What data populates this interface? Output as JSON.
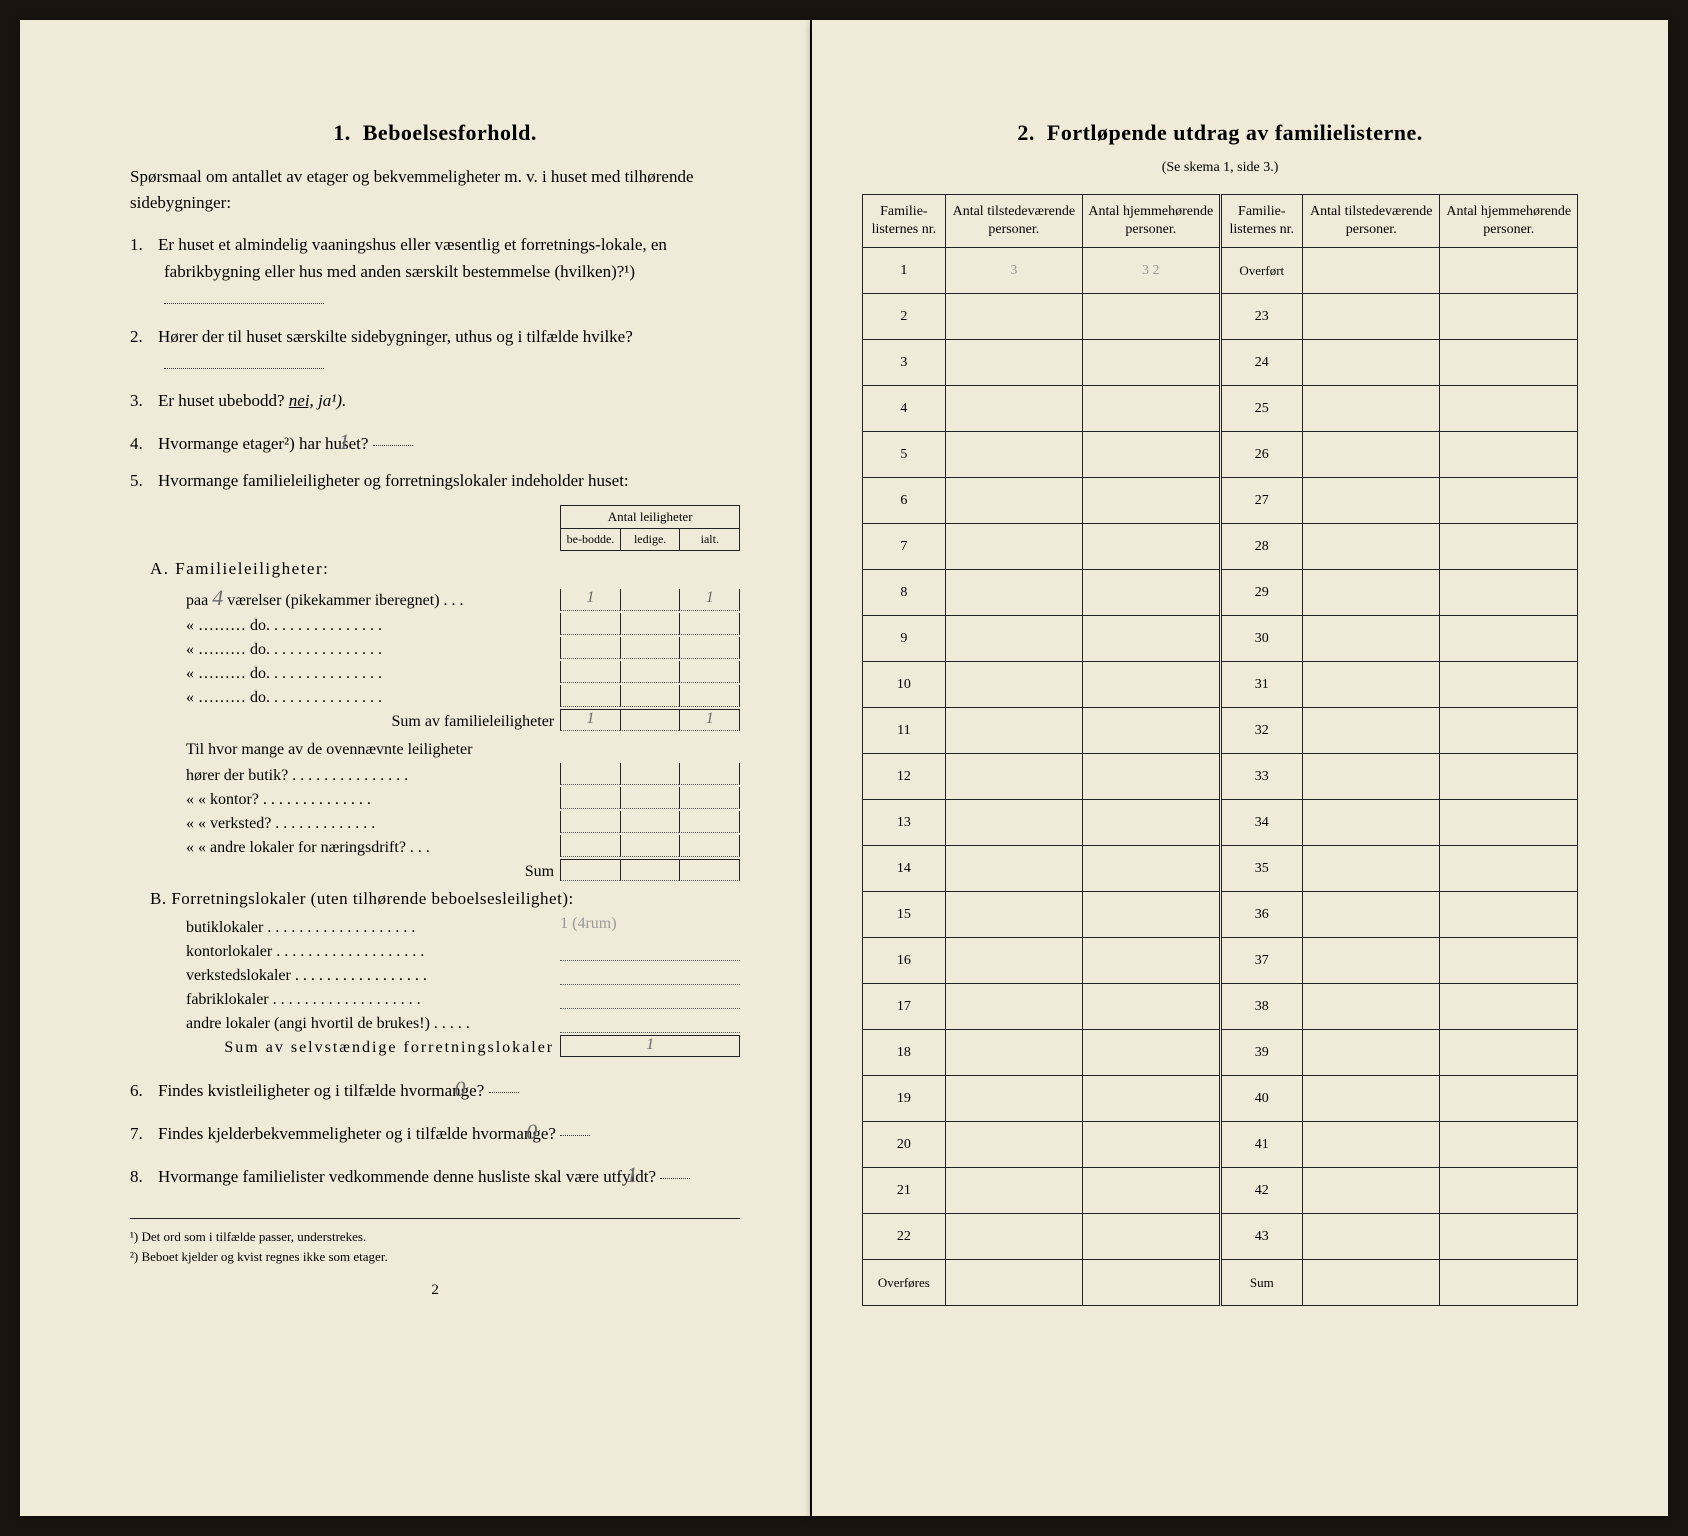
{
  "left": {
    "section_no": "1.",
    "section_title": "Beboelsesforhold.",
    "intro": "Spørsmaal om antallet av etager og bekvemmeligheter m. v. i huset med tilhørende sidebygninger:",
    "q1": "Er huset et almindelig vaaningshus eller væsentlig et forretnings-lokale, en fabrikbygning eller hus med anden særskilt bestemmelse (hvilken)?¹)",
    "q2": "Hører der til huset særskilte sidebygninger, uthus og i tilfælde hvilke?",
    "q3_pre": "Er huset ubebodd?",
    "q3_nei": "nei,",
    "q3_ja": "ja¹).",
    "q4_pre": "Hvormange etager²) har huset?",
    "q4_ans": "1",
    "q5": "Hvormange familieleiligheter og forretningslokaler indeholder huset:",
    "antall_hdr": "Antal leiligheter",
    "col_bebodde": "be-bodde.",
    "col_ledige": "ledige.",
    "col_ialt": "ialt.",
    "A_label": "A. Familieleiligheter:",
    "A_row1_pre": "paa",
    "A_row1_rooms": "4",
    "A_row1_rest": "værelser (pikekammer iberegnet) . . .",
    "A_row1_beb": "1",
    "A_row1_ialt": "1",
    "A_do": "«   ………   do.   . . . . . . . . . . . . . .",
    "A_sum": "Sum av familieleiligheter",
    "A_sum_beb": "1",
    "A_sum_ialt": "1",
    "A_sub_intro": "Til hvor mange av de ovennævnte leiligheter",
    "A_sub1": "hører der butik? . . . . . . . . . . . . . . .",
    "A_sub2": "«      «   kontor? . . . . . . . . . . . . . .",
    "A_sub3": "«      «   verksted? . . . . . . . . . . . . .",
    "A_sub4": "«      «   andre lokaler for næringsdrift? . . .",
    "A_sub_sum": "Sum",
    "B_label": "B. Forretningslokaler (uten tilhørende beboelsesleilighet):",
    "B_row1": "butiklokaler . . . . . . . . . . . . . . . . . . .",
    "B_row1_val": "1 (4rum)",
    "B_row2": "kontorlokaler . . . . . . . . . . . . . . . . . . .",
    "B_row3": "verkstedslokaler . . . . . . . . . . . . . . . . .",
    "B_row4": "fabriklokaler . . . . . . . . . . . . . . . . . . .",
    "B_row5": "andre lokaler (angi hvortil de brukes!) . . . . .",
    "B_sum": "Sum av selvstændige forretningslokaler",
    "B_sum_val": "1",
    "q6_pre": "Findes kvistleiligheter og i tilfælde hvormange?",
    "q6_ans": "0",
    "q7_pre": "Findes kjelderbekvemmeligheter og i tilfælde hvormange?",
    "q7_ans": "0",
    "q8_pre": "Hvormange familielister vedkommende denne husliste skal være utfyldt?",
    "q8_ans": "1",
    "fn1": "¹) Det ord som i tilfælde passer, understrekes.",
    "fn2": "²) Beboet kjelder og kvist regnes ikke som etager.",
    "page_num": "2"
  },
  "right": {
    "section_no": "2.",
    "section_title": "Fortløpende utdrag av familielisterne.",
    "subtitle": "(Se skema 1, side 3.)",
    "col_nr": "Familie-listernes nr.",
    "col_tilstede": "Antal tilstedeværende personer.",
    "col_hjemme": "Antal hjemmehørende personer.",
    "rows_left": [
      {
        "nr": "1",
        "a": "3",
        "b": "3  2"
      },
      {
        "nr": "2",
        "a": "",
        "b": ""
      },
      {
        "nr": "3",
        "a": "",
        "b": ""
      },
      {
        "nr": "4",
        "a": "",
        "b": ""
      },
      {
        "nr": "5",
        "a": "",
        "b": ""
      },
      {
        "nr": "6",
        "a": "",
        "b": ""
      },
      {
        "nr": "7",
        "a": "",
        "b": ""
      },
      {
        "nr": "8",
        "a": "",
        "b": ""
      },
      {
        "nr": "9",
        "a": "",
        "b": ""
      },
      {
        "nr": "10",
        "a": "",
        "b": ""
      },
      {
        "nr": "11",
        "a": "",
        "b": ""
      },
      {
        "nr": "12",
        "a": "",
        "b": ""
      },
      {
        "nr": "13",
        "a": "",
        "b": ""
      },
      {
        "nr": "14",
        "a": "",
        "b": ""
      },
      {
        "nr": "15",
        "a": "",
        "b": ""
      },
      {
        "nr": "16",
        "a": "",
        "b": ""
      },
      {
        "nr": "17",
        "a": "",
        "b": ""
      },
      {
        "nr": "18",
        "a": "",
        "b": ""
      },
      {
        "nr": "19",
        "a": "",
        "b": ""
      },
      {
        "nr": "20",
        "a": "",
        "b": ""
      },
      {
        "nr": "21",
        "a": "",
        "b": ""
      },
      {
        "nr": "22",
        "a": "",
        "b": ""
      }
    ],
    "overfores": "Overføres",
    "rows_right_start_label": "Overført",
    "rows_right": [
      "23",
      "24",
      "25",
      "26",
      "27",
      "28",
      "29",
      "30",
      "31",
      "32",
      "33",
      "34",
      "35",
      "36",
      "37",
      "38",
      "39",
      "40",
      "41",
      "42",
      "43"
    ],
    "sum_label": "Sum"
  }
}
